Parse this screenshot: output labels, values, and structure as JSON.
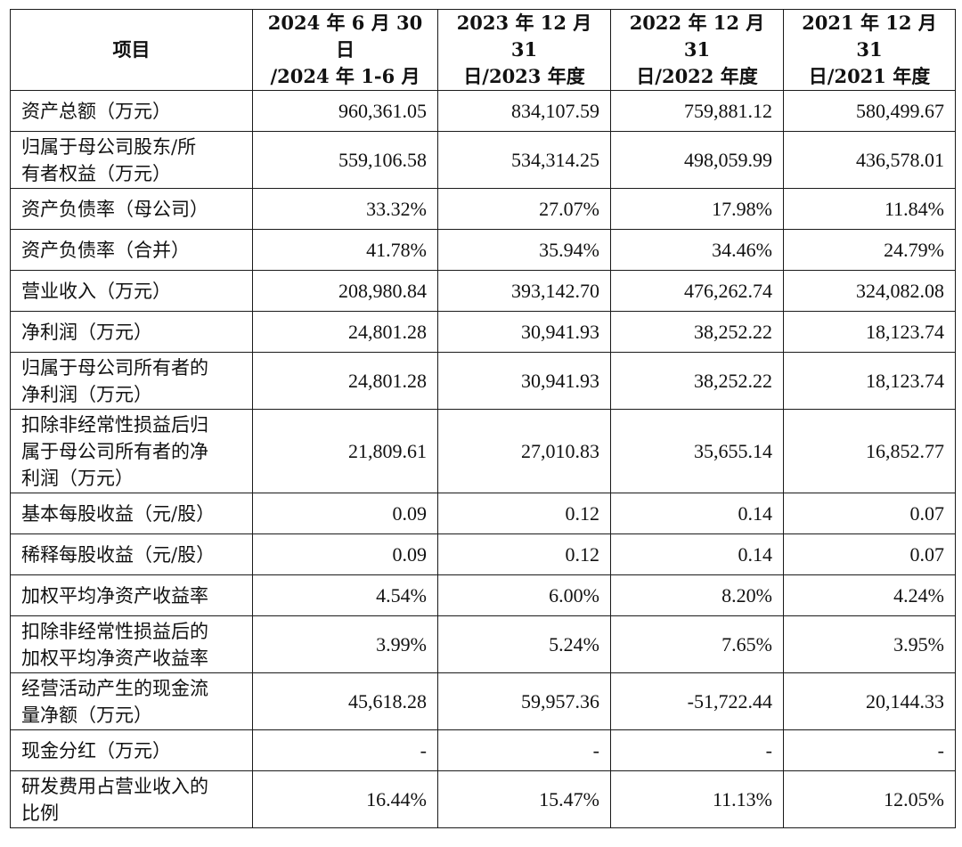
{
  "header": {
    "item": "项目",
    "col1_line1": "2024 年 6 月 30 日",
    "col1_line2": "/2024 年 1-6 月",
    "col2_line1": "2023 年 12 月 31",
    "col2_line2": "日/2023 年度",
    "col3_line1": "2022 年 12 月 31",
    "col3_line2": "日/2022 年度",
    "col4_line1": "2021 年 12 月 31",
    "col4_line2": "日/2021 年度"
  },
  "rows": [
    {
      "label": [
        "资产总额（万元）"
      ],
      "values": [
        "960,361.05",
        "834,107.59",
        "759,881.12",
        "580,499.67"
      ]
    },
    {
      "label": [
        "归属于母公司股东/所",
        "有者权益（万元）"
      ],
      "values": [
        "559,106.58",
        "534,314.25",
        "498,059.99",
        "436,578.01"
      ]
    },
    {
      "label": [
        "资产负债率（母公司）"
      ],
      "values": [
        "33.32%",
        "27.07%",
        "17.98%",
        "11.84%"
      ]
    },
    {
      "label": [
        "资产负债率（合并）"
      ],
      "values": [
        "41.78%",
        "35.94%",
        "34.46%",
        "24.79%"
      ]
    },
    {
      "label": [
        "营业收入（万元）"
      ],
      "values": [
        "208,980.84",
        "393,142.70",
        "476,262.74",
        "324,082.08"
      ]
    },
    {
      "label": [
        "净利润（万元）"
      ],
      "values": [
        "24,801.28",
        "30,941.93",
        "38,252.22",
        "18,123.74"
      ]
    },
    {
      "label": [
        "归属于母公司所有者的",
        "净利润（万元）"
      ],
      "values": [
        "24,801.28",
        "30,941.93",
        "38,252.22",
        "18,123.74"
      ]
    },
    {
      "label": [
        "扣除非经常性损益后归",
        "属于母公司所有者的净",
        "利润（万元）"
      ],
      "values": [
        "21,809.61",
        "27,010.83",
        "35,655.14",
        "16,852.77"
      ]
    },
    {
      "label": [
        "基本每股收益（元/股）"
      ],
      "values": [
        "0.09",
        "0.12",
        "0.14",
        "0.07"
      ]
    },
    {
      "label": [
        "稀释每股收益（元/股）"
      ],
      "values": [
        "0.09",
        "0.12",
        "0.14",
        "0.07"
      ]
    },
    {
      "label": [
        "加权平均净资产收益率"
      ],
      "values": [
        "4.54%",
        "6.00%",
        "8.20%",
        "4.24%"
      ]
    },
    {
      "label": [
        "扣除非经常性损益后的",
        "加权平均净资产收益率"
      ],
      "values": [
        "3.99%",
        "5.24%",
        "7.65%",
        "3.95%"
      ]
    },
    {
      "label": [
        "经营活动产生的现金流",
        "量净额（万元）"
      ],
      "values": [
        "45,618.28",
        "59,957.36",
        "-51,722.44",
        "20,144.33"
      ]
    },
    {
      "label": [
        "现金分红（万元）"
      ],
      "values": [
        "-",
        "-",
        "-",
        "-"
      ]
    },
    {
      "label": [
        "研发费用占营业收入的",
        "比例"
      ],
      "values": [
        "16.44%",
        "15.47%",
        "11.13%",
        "12.05%"
      ]
    }
  ]
}
